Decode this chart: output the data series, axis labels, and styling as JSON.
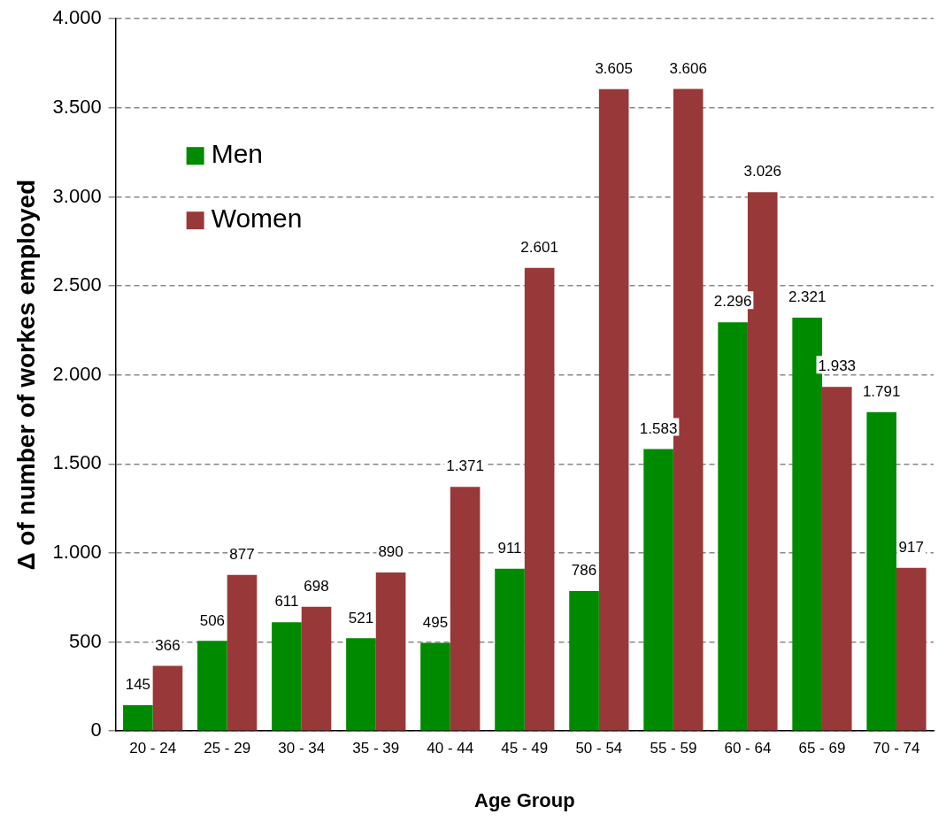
{
  "chart_data": {
    "type": "bar",
    "xlabel": "Age Group",
    "ylabel": "Δ of number of workes employed",
    "categories": [
      "20 - 24",
      "25 - 29",
      "30 - 34",
      "35 - 39",
      "40 - 44",
      "45 - 49",
      "50 - 54",
      "55 - 59",
      "60 - 64",
      "65 - 69",
      "70 - 74"
    ],
    "series": [
      {
        "name": "Men",
        "color": "#008a00",
        "values": [
          145,
          506,
          611,
          521,
          495,
          911,
          786,
          1583,
          2296,
          2321,
          1791
        ],
        "value_labels": [
          "145",
          "506",
          "611",
          "521",
          "495",
          "911",
          "786",
          "1.583",
          "2.296",
          "2.321",
          "1.791"
        ]
      },
      {
        "name": "Women",
        "color": "#993838",
        "values": [
          366,
          877,
          698,
          890,
          1371,
          2601,
          3605,
          3606,
          3026,
          1933,
          917
        ],
        "value_labels": [
          "366",
          "877",
          "698",
          "890",
          "1.371",
          "2.601",
          "3.605",
          "3.606",
          "3.026",
          "1.933",
          "917"
        ]
      }
    ],
    "ylim": [
      0,
      4000
    ],
    "yticks": [
      0,
      500,
      {
        "value": 1000,
        "label": "1.000"
      },
      {
        "value": 1500,
        "label": "1.500"
      },
      {
        "value": 2000,
        "label": "2.000"
      },
      {
        "value": 2500,
        "label": "2.500"
      },
      {
        "value": 3000,
        "label": "3.000"
      },
      {
        "value": 3500,
        "label": "3.500"
      },
      {
        "value": 4000,
        "label": "4.000"
      }
    ],
    "grid": "y",
    "legend": "top left"
  }
}
